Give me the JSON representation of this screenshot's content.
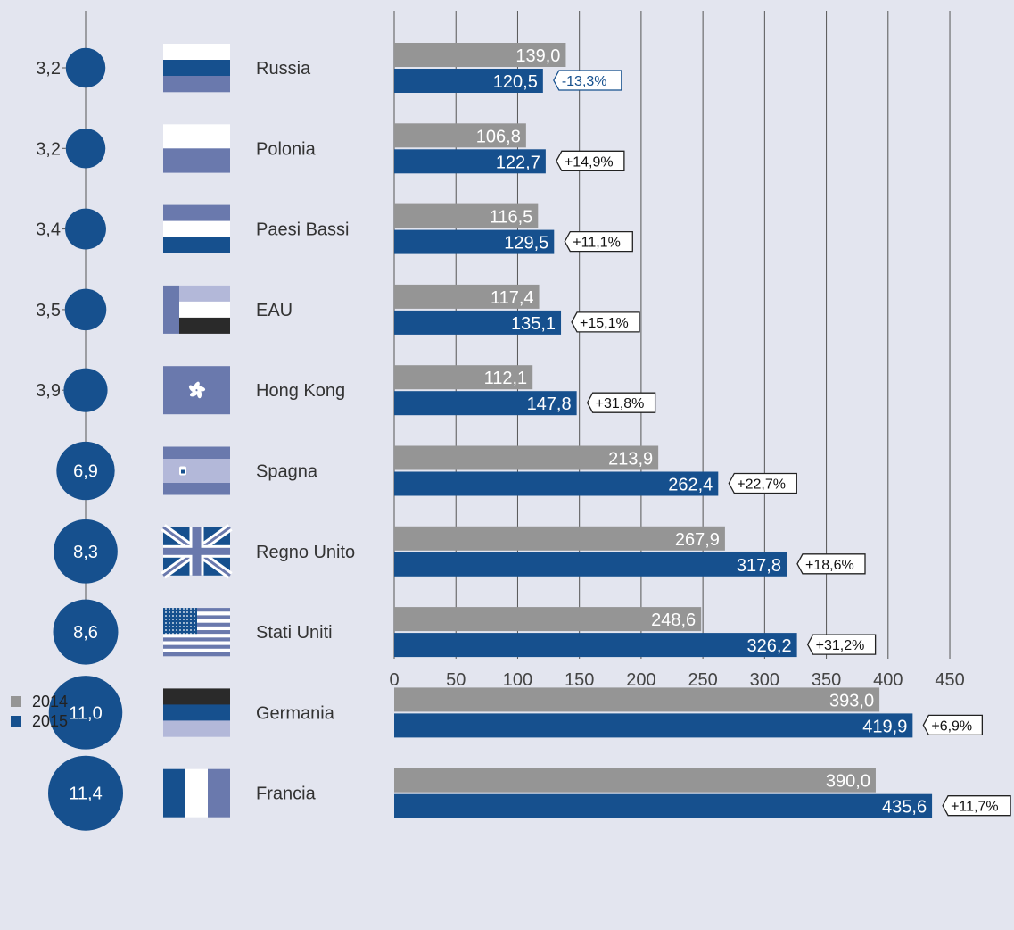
{
  "colors": {
    "background": "#e3e5ef",
    "bar_2014": "#959595",
    "bar_2015": "#16508e",
    "grid": "#555555",
    "flag_light": "#b3b8d9",
    "flag_mid": "#6a79ad",
    "flag_dark": "#16508e",
    "flag_black": "#2a2a2a",
    "white": "#ffffff",
    "negative_accent": "#16508e"
  },
  "chart_data": {
    "type": "bar",
    "orientation": "horizontal",
    "categories": [
      "Russia",
      "Polonia",
      "Paesi Bassi",
      "EAU",
      "Hong Kong",
      "Spagna",
      "Regno Unito",
      "Stati Uniti",
      "Germania",
      "Francia"
    ],
    "series": [
      {
        "name": "2014",
        "values": [
          139.0,
          106.8,
          116.5,
          117.4,
          112.1,
          213.9,
          267.9,
          248.6,
          393.0,
          390.0
        ],
        "labels": [
          "139,0",
          "106,8",
          "116,5",
          "117,4",
          "112,1",
          "213,9",
          "267,9",
          "248,6",
          "393,0",
          "390,0"
        ]
      },
      {
        "name": "2015",
        "values": [
          120.5,
          122.7,
          129.5,
          135.1,
          147.8,
          262.4,
          317.8,
          326.2,
          419.9,
          435.6
        ],
        "labels": [
          "120,5",
          "122,7",
          "129,5",
          "135,1",
          "147,8",
          "262,4",
          "317,8",
          "326,2",
          "419,9",
          "435,6"
        ]
      }
    ],
    "changes": [
      "-13,3%",
      "+14,9%",
      "+11,1%",
      "+15,1%",
      "+31,8%",
      "+22,7%",
      "+18,6%",
      "+31,2%",
      "+6,9%",
      "+11,7%"
    ],
    "shares": [
      "3,2",
      "3,2",
      "3,4",
      "3,5",
      "3,9",
      "6,9",
      "8,3",
      "8,6",
      "11,0",
      "11,4"
    ],
    "share_values": [
      3.2,
      3.2,
      3.4,
      3.5,
      3.9,
      6.9,
      8.3,
      8.6,
      11.0,
      11.4
    ],
    "flags": [
      "russia-flag",
      "poland-flag",
      "netherlands-flag",
      "uae-flag",
      "hong-kong-flag",
      "spain-flag",
      "uk-flag",
      "usa-flag",
      "germany-flag",
      "france-flag"
    ],
    "x_ticks": [
      "0",
      "50",
      "100",
      "150",
      "200",
      "250",
      "300",
      "350",
      "400",
      "450"
    ],
    "x_tick_values": [
      0,
      50,
      100,
      150,
      200,
      250,
      300,
      350,
      400,
      450
    ],
    "xlim": [
      0,
      500
    ],
    "grid": true,
    "legend_position": "bottom-left"
  }
}
